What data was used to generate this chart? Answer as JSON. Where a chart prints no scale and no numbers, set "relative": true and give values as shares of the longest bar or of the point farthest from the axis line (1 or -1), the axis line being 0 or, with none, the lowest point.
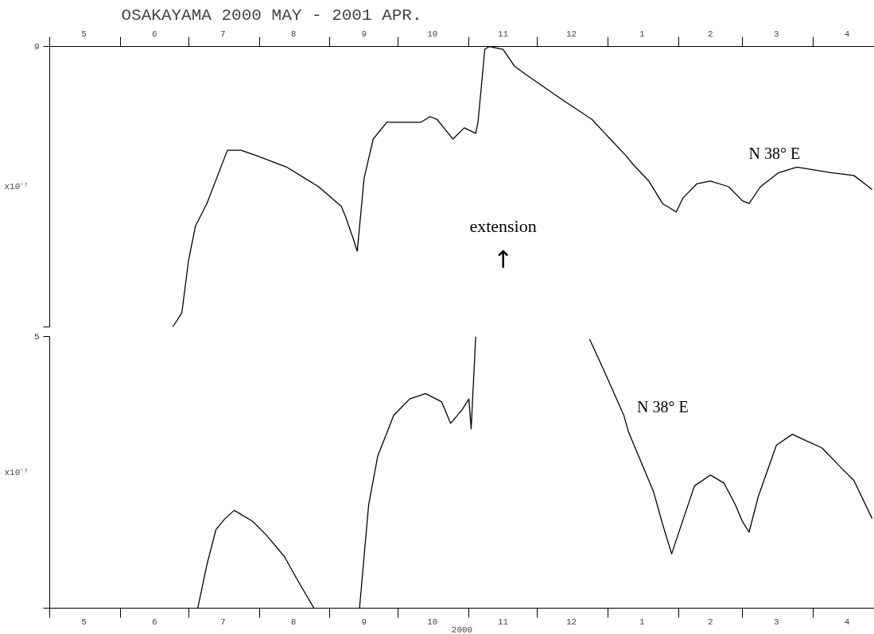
{
  "chart_data": [
    {
      "type": "line",
      "relative": true,
      "title": "OSAKAYAMA 2000 MAY - 2001 APR.",
      "ylabel": "x10⁻⁷",
      "color": "#000000",
      "grid": false,
      "tick_labels": "x",
      "x": [
        "2000-06-24",
        "2000-06-28",
        "2000-07-01",
        "2000-07-04",
        "2000-07-09",
        "2000-07-18",
        "2000-07-24",
        "2000-07-31",
        "2000-08-13",
        "2000-08-21",
        "2000-08-27",
        "2000-09-06",
        "2000-09-08",
        "2000-09-11",
        "2000-09-13",
        "2000-09-16",
        "2000-09-20",
        "2000-09-25",
        "2000-09-26",
        "2000-10-11",
        "2000-10-15",
        "2000-10-18",
        "2000-10-22",
        "2000-10-25",
        "2000-10-30",
        "2000-11-04",
        "2000-11-05",
        "2000-11-08",
        "2000-11-10",
        "2000-11-16",
        "2000-11-21",
        "2000-11-26",
        "2000-12-12",
        "2000-12-25",
        "2001-01-09",
        "2001-01-12",
        "2001-01-19",
        "2001-01-25",
        "2001-01-31",
        "2001-02-03",
        "2001-02-09",
        "2001-02-15",
        "2001-02-23",
        "2001-03-01",
        "2001-03-04",
        "2001-03-09",
        "2001-03-17",
        "2001-03-25",
        "2001-04-09",
        "2001-04-19",
        "2001-04-27"
      ],
      "values": [
        0.0,
        0.05,
        0.24,
        0.36,
        0.44,
        0.63,
        0.63,
        0.61,
        0.57,
        0.53,
        0.5,
        0.43,
        0.39,
        0.32,
        0.27,
        0.53,
        0.67,
        0.72,
        0.73,
        0.73,
        0.75,
        0.74,
        0.7,
        0.67,
        0.71,
        0.69,
        0.73,
        0.99,
        1.0,
        0.99,
        0.93,
        0.9,
        0.81,
        0.74,
        0.61,
        0.58,
        0.52,
        0.44,
        0.41,
        0.46,
        0.51,
        0.52,
        0.5,
        0.45,
        0.44,
        0.5,
        0.55,
        0.57,
        0.55,
        0.54,
        0.49
      ],
      "xlim": [
        "2000-05-01",
        "2001-04-28"
      ],
      "xticks": [
        {
          "value": "2000-05-01",
          "label": null
        },
        {
          "value": "2000-05-16",
          "label": "5"
        },
        {
          "value": "2000-06-01",
          "label": null
        },
        {
          "value": "2000-06-16",
          "label": "6"
        },
        {
          "value": "2000-07-01",
          "label": null
        },
        {
          "value": "2000-07-16",
          "label": "7"
        },
        {
          "value": "2000-08-01",
          "label": null
        },
        {
          "value": "2000-08-16",
          "label": "8"
        },
        {
          "value": "2000-09-01",
          "label": null
        },
        {
          "value": "2000-09-16",
          "label": "9"
        },
        {
          "value": "2000-10-01",
          "label": null
        },
        {
          "value": "2000-10-16",
          "label": "10"
        },
        {
          "value": "2000-11-01",
          "label": null
        },
        {
          "value": "2000-11-16",
          "label": "11"
        },
        {
          "value": "2000-12-01",
          "label": null
        },
        {
          "value": "2000-12-16",
          "label": "12"
        },
        {
          "value": "2001-01-01",
          "label": null
        },
        {
          "value": "2001-01-16",
          "label": "1"
        },
        {
          "value": "2001-02-01",
          "label": null
        },
        {
          "value": "2001-02-15",
          "label": "2"
        },
        {
          "value": "2001-03-01",
          "label": null
        },
        {
          "value": "2001-03-16",
          "label": "3"
        },
        {
          "value": "2001-04-01",
          "label": null
        },
        {
          "value": "2001-04-16",
          "label": "4"
        }
      ],
      "annotations": [
        "9",
        "extension",
        "↑",
        "N 38°  E"
      ]
    },
    {
      "type": "line",
      "relative": true,
      "xlabel": "2000",
      "ylabel": "x10⁻⁷",
      "color": "#000000",
      "grid": false,
      "tick_labels": "x",
      "x": [
        "2000-07-05",
        "2000-07-09",
        "2000-07-13",
        "2000-07-17",
        "2000-07-21",
        "2000-07-29",
        "2000-08-04",
        "2000-08-12",
        "2000-08-18",
        "2000-08-25",
        "2000-09-07",
        "2000-09-14",
        "2000-09-18",
        "2000-09-22",
        "2000-09-29",
        "2000-10-06",
        "2000-10-13",
        "2000-10-20",
        "2000-10-24",
        "2000-10-29",
        "2000-11-01",
        "2000-11-02",
        "2000-11-03",
        "2000-11-04",
        "2000-11-28",
        "2000-12-24",
        "2000-12-30",
        "2001-01-08",
        "2001-01-10",
        "2001-01-21",
        "2001-01-25",
        "2001-01-29",
        "2001-02-02",
        "2001-02-08",
        "2001-02-15",
        "2001-02-21",
        "2001-02-26",
        "2001-03-01",
        "2001-03-04",
        "2001-03-08",
        "2001-03-16",
        "2001-03-23",
        "2001-03-28",
        "2001-04-05",
        "2001-04-13",
        "2001-04-19",
        "2001-04-27"
      ],
      "values": [
        0.0,
        0.16,
        0.29,
        0.33,
        0.36,
        0.32,
        0.27,
        0.19,
        0.1,
        0.0,
        null,
        0.0,
        0.38,
        0.56,
        0.71,
        0.77,
        0.79,
        0.76,
        0.68,
        0.73,
        0.77,
        0.66,
        0.83,
        1.0,
        null,
        0.99,
        0.88,
        0.71,
        0.65,
        0.43,
        0.31,
        0.2,
        0.3,
        0.45,
        0.49,
        0.46,
        0.38,
        0.32,
        0.28,
        0.41,
        0.6,
        0.64,
        0.62,
        0.59,
        0.52,
        0.47,
        0.33
      ],
      "xlim": [
        "2000-05-01",
        "2001-04-28"
      ],
      "xticks": [
        {
          "value": "2000-05-01",
          "label": null
        },
        {
          "value": "2000-05-16",
          "label": "5"
        },
        {
          "value": "2000-06-01",
          "label": null
        },
        {
          "value": "2000-06-16",
          "label": "6"
        },
        {
          "value": "2000-07-01",
          "label": null
        },
        {
          "value": "2000-07-16",
          "label": "7"
        },
        {
          "value": "2000-08-01",
          "label": null
        },
        {
          "value": "2000-08-16",
          "label": "8"
        },
        {
          "value": "2000-09-01",
          "label": null
        },
        {
          "value": "2000-09-16",
          "label": "9"
        },
        {
          "value": "2000-10-01",
          "label": null
        },
        {
          "value": "2000-10-16",
          "label": "10"
        },
        {
          "value": "2000-11-01",
          "label": null
        },
        {
          "value": "2000-11-16",
          "label": "11"
        },
        {
          "value": "2000-12-01",
          "label": null
        },
        {
          "value": "2000-12-16",
          "label": "12"
        },
        {
          "value": "2001-01-01",
          "label": null
        },
        {
          "value": "2001-01-16",
          "label": "1"
        },
        {
          "value": "2001-02-01",
          "label": null
        },
        {
          "value": "2001-02-15",
          "label": "2"
        },
        {
          "value": "2001-03-01",
          "label": null
        },
        {
          "value": "2001-03-16",
          "label": "3"
        },
        {
          "value": "2001-04-01",
          "label": null
        },
        {
          "value": "2001-04-16",
          "label": "4"
        }
      ],
      "annotations": [
        "5",
        "N 38°  E"
      ]
    }
  ]
}
